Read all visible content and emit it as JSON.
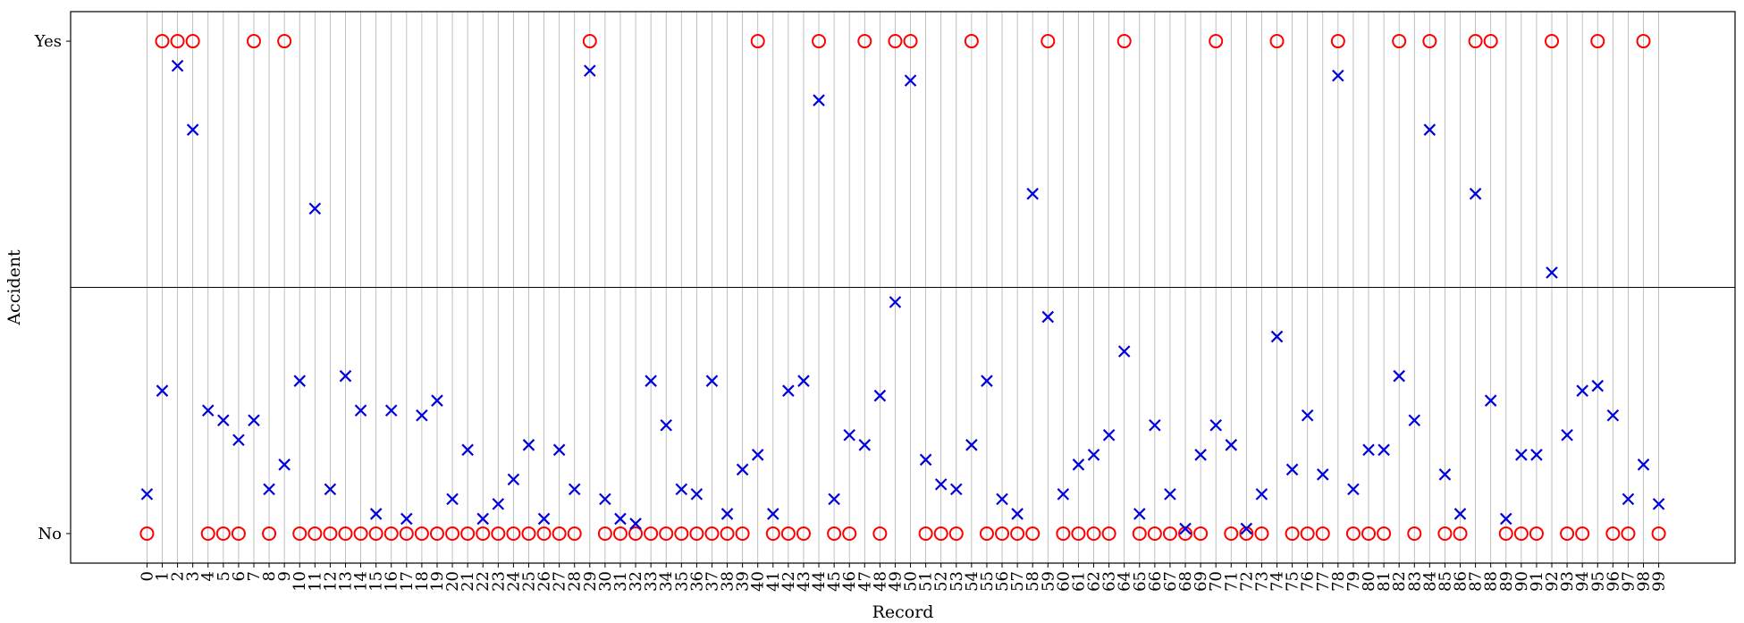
{
  "chart_data": {
    "type": "scatter",
    "xlabel": "Record",
    "ylabel": "Accident",
    "ytick_labels": [
      "No",
      "Yes"
    ],
    "x": [
      0,
      1,
      2,
      3,
      4,
      5,
      6,
      7,
      8,
      9,
      10,
      11,
      12,
      13,
      14,
      15,
      16,
      17,
      18,
      19,
      20,
      21,
      22,
      23,
      24,
      25,
      26,
      27,
      28,
      29,
      30,
      31,
      32,
      33,
      34,
      35,
      36,
      37,
      38,
      39,
      40,
      41,
      42,
      43,
      44,
      45,
      46,
      47,
      48,
      49,
      50,
      51,
      52,
      53,
      54,
      55,
      56,
      57,
      58,
      59,
      60,
      61,
      62,
      63,
      64,
      65,
      66,
      67,
      68,
      69,
      70,
      71,
      72,
      73,
      74,
      75,
      76,
      77,
      78,
      79,
      80,
      81,
      82,
      83,
      84,
      85,
      86,
      87,
      88,
      89,
      90,
      91,
      92,
      93,
      94,
      95,
      96,
      97,
      98,
      99
    ],
    "actual": [
      0,
      1,
      1,
      1,
      0,
      0,
      0,
      1,
      0,
      1,
      0,
      0,
      0,
      0,
      0,
      0,
      0,
      0,
      0,
      0,
      0,
      0,
      0,
      0,
      0,
      0,
      0,
      0,
      0,
      1,
      0,
      0,
      0,
      0,
      0,
      0,
      0,
      0,
      0,
      0,
      1,
      0,
      0,
      0,
      1,
      0,
      0,
      1,
      0,
      1,
      1,
      0,
      0,
      0,
      1,
      0,
      0,
      0,
      0,
      1,
      0,
      0,
      0,
      0,
      1,
      0,
      0,
      0,
      0,
      0,
      1,
      0,
      0,
      0,
      1,
      0,
      0,
      0,
      1,
      0,
      0,
      0,
      1,
      0,
      1,
      0,
      0,
      1,
      1,
      0,
      0,
      0,
      1,
      0,
      0,
      1,
      0,
      0,
      1,
      0
    ],
    "predicted": [
      0.08,
      0.29,
      0.95,
      0.82,
      0.25,
      0.23,
      0.19,
      0.23,
      0.09,
      0.14,
      0.31,
      0.66,
      0.09,
      0.32,
      0.25,
      0.04,
      0.25,
      0.03,
      0.24,
      0.27,
      0.07,
      0.17,
      0.03,
      0.06,
      0.11,
      0.18,
      0.03,
      0.17,
      0.09,
      0.94,
      0.07,
      0.03,
      0.02,
      0.31,
      0.22,
      0.09,
      0.08,
      0.31,
      0.04,
      0.13,
      0.16,
      0.04,
      0.29,
      0.31,
      0.88,
      0.07,
      0.2,
      0.18,
      0.28,
      0.47,
      0.92,
      0.15,
      0.1,
      0.09,
      0.18,
      0.31,
      0.07,
      0.04,
      0.69,
      0.44,
      0.08,
      0.14,
      0.16,
      0.2,
      0.37,
      0.04,
      0.22,
      0.08,
      0.01,
      0.16,
      0.22,
      0.18,
      0.01,
      0.08,
      0.4,
      0.13,
      0.24,
      0.12,
      0.93,
      0.09,
      0.17,
      0.17,
      0.32,
      0.23,
      0.82,
      0.12,
      0.04,
      0.69,
      0.27,
      0.03,
      0.16,
      0.16,
      0.53,
      0.2,
      0.29,
      0.3,
      0.24,
      0.07,
      0.14,
      0.06
    ],
    "xlim": [
      -5,
      104
    ],
    "ylim": [
      -0.06,
      1.06
    ],
    "threshold": 0.5,
    "grid": "vertical",
    "colors": {
      "actual": "#ff0000",
      "predicted": "#0000dd",
      "grid": "#b0b0b0"
    }
  }
}
